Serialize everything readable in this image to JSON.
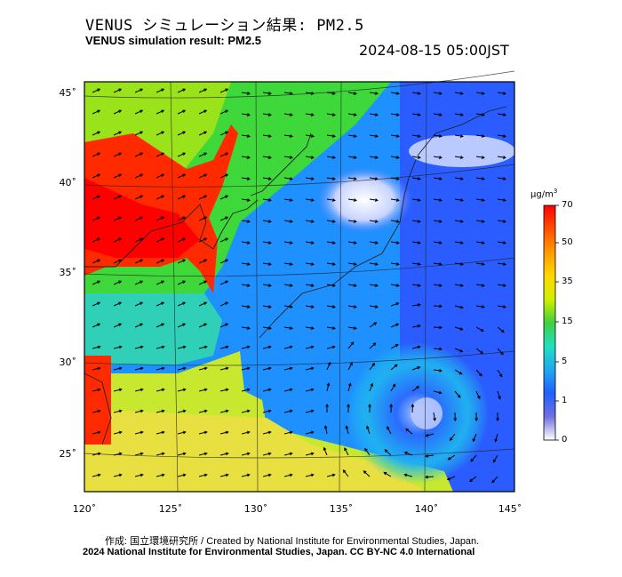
{
  "title_jp": "VENUS シミュレーション結果: PM2.5",
  "title_en": "VENUS simulation result: PM2.5",
  "timestamp": "2024-08-15 05:00JST",
  "axes": {
    "lat_ticks": [
      "45˚",
      "40˚",
      "35˚",
      "30˚",
      "25˚"
    ],
    "lon_ticks": [
      "120˚",
      "125˚",
      "130˚",
      "135˚",
      "140˚",
      "145˚"
    ]
  },
  "colorbar": {
    "unit_base": "µg/m",
    "unit_exp": "3",
    "labels": [
      "70",
      "50",
      "35",
      "15",
      "5",
      "1",
      "0"
    ],
    "colors": [
      "#ff0000",
      "#ff7a00",
      "#ffd400",
      "#c8f000",
      "#2ecc2e",
      "#20e0c0",
      "#1aa0f0",
      "#2255ff",
      "#6a6ae0",
      "#ffffff"
    ]
  },
  "credit_line1": "作成: 国立環境研究所 / Created by National Institute for Environmental Studies, Japan.",
  "credit_line2": "2024 National Institute for Environmental Studies, Japan. CC BY-NC 4.0 International"
}
